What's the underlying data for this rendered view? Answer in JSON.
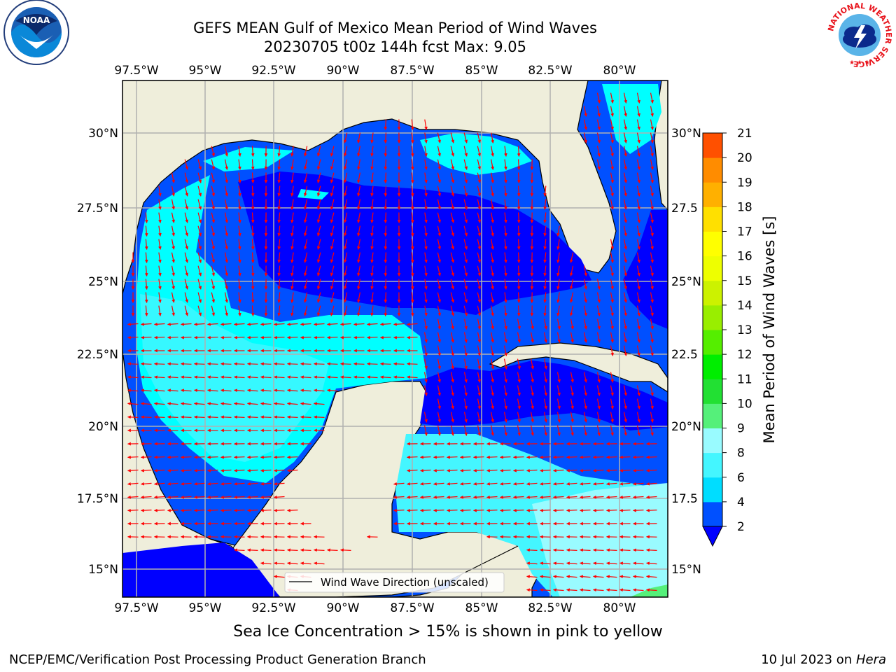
{
  "header": {
    "title_line1": "GEFS MEAN Gulf of Mexico Mean Period of Wind Waves",
    "title_line2": "20230705 t00z 144h fcst   Max: 9.05"
  },
  "map": {
    "lon_labels": [
      "97.5°W",
      "95°W",
      "92.5°W",
      "90°W",
      "87.5°W",
      "85°W",
      "82.5°W",
      "80°W"
    ],
    "lat_labels": [
      "30°N",
      "27.5°N",
      "25°N",
      "22.5°N",
      "20°N",
      "17.5°N",
      "15°N"
    ],
    "right_lat_labels": [
      "30°N",
      "27.5",
      "25°N",
      "22.5",
      "20°N",
      "17.5",
      "15°N"
    ],
    "legend_label": "Wind Wave Direction (unscaled)",
    "land_color": "#efeedb",
    "arrow_color": "#ff0000"
  },
  "colorbar": {
    "label": "Mean Period of Wind Waves [s]",
    "ticks": [
      "2",
      "4",
      "6",
      "8",
      "9",
      "10",
      "11",
      "12",
      "13",
      "14",
      "15",
      "16",
      "17",
      "18",
      "19",
      "20",
      "21"
    ],
    "colors": [
      "#0050ff",
      "#00ddff",
      "#44f6ff",
      "#99fbff",
      "#55f07a",
      "#22e033",
      "#00ee00",
      "#55ee00",
      "#99ee00",
      "#ccf200",
      "#eeff00",
      "#ffff00",
      "#ffe000",
      "#ffb000",
      "#ff8c00",
      "#ff5000",
      "#ff2a00",
      "#ff0000"
    ],
    "extend_color": "#0000ff"
  },
  "logos": {
    "noaa_text": "NOAA",
    "nws_text": "NATIONAL WEATHER SERVICE"
  },
  "footer": {
    "ice_note": "Sea Ice Concentration > 15% is shown in pink to yellow",
    "credit": "NCEP/EMC/Verification Post Processing Product Generation Branch",
    "date_prefix": "10 Jul 2023 on ",
    "machine": "Hera"
  }
}
